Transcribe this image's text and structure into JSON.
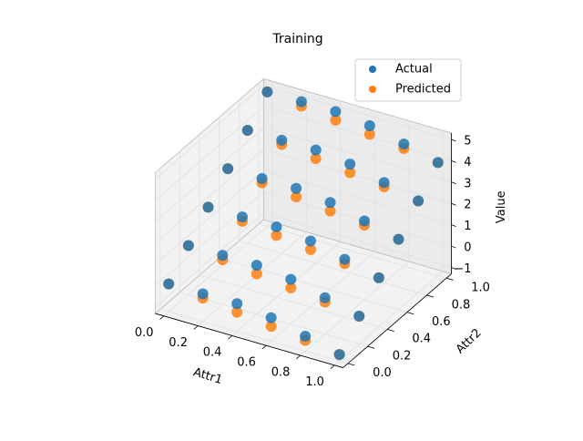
{
  "chart_data": {
    "type": "scatter3d",
    "title": "Training",
    "xlabel": "Attr1",
    "ylabel": "Attr2",
    "zlabel": "Value",
    "x": [
      0,
      0.2,
      0.4,
      0.6,
      0.8,
      1,
      0,
      0.2,
      0.4,
      0.6,
      0.8,
      1,
      0,
      0.2,
      0.4,
      0.6,
      0.8,
      1,
      0,
      0.2,
      0.4,
      0.6,
      0.8,
      1,
      0,
      0.2,
      0.4,
      0.6,
      0.8,
      1,
      0,
      0.2,
      0.4,
      0.6,
      0.8,
      1
    ],
    "y": [
      0,
      0,
      0,
      0,
      0,
      0,
      0.2,
      0.2,
      0.2,
      0.2,
      0.2,
      0.2,
      0.4,
      0.4,
      0.4,
      0.4,
      0.4,
      0.4,
      0.6,
      0.6,
      0.6,
      0.6,
      0.6,
      0.6,
      0.8,
      0.8,
      0.8,
      0.8,
      0.8,
      0.8,
      1,
      1,
      1,
      1,
      1,
      1
    ],
    "series": [
      {
        "name": "Predicted",
        "color": "#ff7f0e",
        "values": [
          0,
          -0.2,
          -0.4,
          -0.6,
          -0.8,
          -1,
          1,
          0.8,
          0.6,
          0.4,
          0.2,
          0,
          2,
          1.8,
          1.6,
          1.4,
          1.2,
          1,
          3,
          2.8,
          2.6,
          2.4,
          2.2,
          2,
          4,
          3.8,
          3.6,
          3.4,
          3.2,
          3,
          5,
          4.8,
          4.6,
          4.4,
          4.2,
          4
        ]
      },
      {
        "name": "Actual",
        "color": "#1f77b4",
        "values": [
          0,
          0,
          0,
          -0.2,
          -0.6,
          -1,
          1,
          1,
          1,
          0.8,
          0.4,
          0,
          2,
          2,
          2,
          1.8,
          1.4,
          1,
          3,
          3,
          3,
          2.8,
          2.4,
          2,
          4,
          4,
          4,
          3.8,
          3.4,
          3,
          5,
          5,
          5,
          4.8,
          4.4,
          4
        ]
      }
    ],
    "legend_order": [
      1,
      0
    ],
    "legend_loc": "upper right",
    "xlim": [
      -0.05,
      1.05
    ],
    "ylim": [
      -0.05,
      1.05
    ],
    "zlim": [
      -1.3,
      5.3
    ],
    "xticks": [
      {
        "value": 0,
        "label": "0.0"
      },
      0.2,
      0.4,
      0.6,
      0.8,
      {
        "value": 1,
        "label": "1.0"
      }
    ],
    "yticks": [
      {
        "value": 0,
        "label": "0.0"
      },
      0.2,
      0.4,
      0.6,
      0.8,
      {
        "value": 1,
        "label": "1.0"
      }
    ],
    "zticks": [
      {
        "value": -1,
        "label": "−1"
      },
      0,
      1,
      2,
      3,
      4,
      5
    ],
    "grid": true
  }
}
